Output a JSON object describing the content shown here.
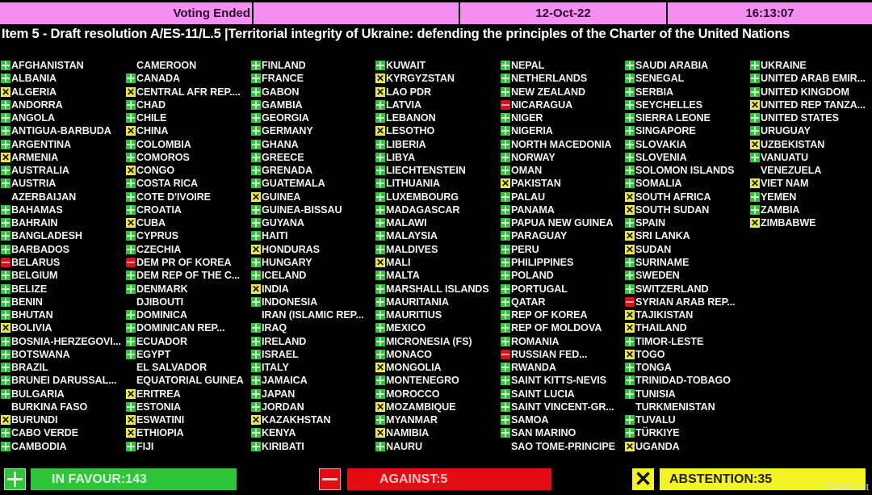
{
  "header": {
    "status": "Voting Ended",
    "empty": "",
    "date": "12-Oct-22",
    "time": "16:13:07"
  },
  "title": "Item 5 - Draft resolution A/ES-11/L.5 |Territorial integrity of Ukraine: defending the principles of the Charter of the United Nations",
  "colors": {
    "header_bg": "#f48ef0",
    "in_favour": "#2fc43a",
    "against": "#e50b12",
    "abstention": "#f4f323"
  },
  "vote_legend": {
    "Y": "plus-icon (in favour)",
    "N": "minus-icon (against)",
    "A": "x-icon (abstention)",
    "": "no vote"
  },
  "columns": [
    [
      [
        "AFGHANISTAN",
        "Y"
      ],
      [
        "ALBANIA",
        "Y"
      ],
      [
        "ALGERIA",
        "A"
      ],
      [
        "ANDORRA",
        "Y"
      ],
      [
        "ANGOLA",
        "Y"
      ],
      [
        "ANTIGUA-BARBUDA",
        "Y"
      ],
      [
        "ARGENTINA",
        "Y"
      ],
      [
        "ARMENIA",
        "A"
      ],
      [
        "AUSTRALIA",
        "Y"
      ],
      [
        "AUSTRIA",
        "Y"
      ],
      [
        "AZERBAIJAN",
        ""
      ],
      [
        "BAHAMAS",
        "Y"
      ],
      [
        "BAHRAIN",
        "Y"
      ],
      [
        "BANGLADESH",
        "Y"
      ],
      [
        "BARBADOS",
        "Y"
      ],
      [
        "BELARUS",
        "N"
      ],
      [
        "BELGIUM",
        "Y"
      ],
      [
        "BELIZE",
        "Y"
      ],
      [
        "BENIN",
        "Y"
      ],
      [
        "BHUTAN",
        "Y"
      ],
      [
        "BOLIVIA",
        "A"
      ],
      [
        "BOSNIA-HERZEGOVI...",
        "Y"
      ],
      [
        "BOTSWANA",
        "Y"
      ],
      [
        "BRAZIL",
        "Y"
      ],
      [
        "BRUNEI DARUSSAL...",
        "Y"
      ],
      [
        "BULGARIA",
        "Y"
      ],
      [
        "BURKINA FASO",
        ""
      ],
      [
        "BURUNDI",
        "A"
      ],
      [
        "CABO VERDE",
        "Y"
      ],
      [
        "CAMBODIA",
        "Y"
      ]
    ],
    [
      [
        "CAMEROON",
        ""
      ],
      [
        "CANADA",
        "Y"
      ],
      [
        "CENTRAL AFR REP....",
        "A"
      ],
      [
        "CHAD",
        "Y"
      ],
      [
        "CHILE",
        "Y"
      ],
      [
        "CHINA",
        "A"
      ],
      [
        "COLOMBIA",
        "Y"
      ],
      [
        "COMOROS",
        "Y"
      ],
      [
        "CONGO",
        "A"
      ],
      [
        "COSTA RICA",
        "Y"
      ],
      [
        "COTE D'IVOIRE",
        "Y"
      ],
      [
        "CROATIA",
        "Y"
      ],
      [
        "CUBA",
        "A"
      ],
      [
        "CYPRUS",
        "Y"
      ],
      [
        "CZECHIA",
        "Y"
      ],
      [
        "DEM PR OF KOREA",
        "N"
      ],
      [
        "DEM REP OF THE C...",
        "Y"
      ],
      [
        "DENMARK",
        "Y"
      ],
      [
        "DJIBOUTI",
        ""
      ],
      [
        "DOMINICA",
        "Y"
      ],
      [
        "DOMINICAN REP...",
        "Y"
      ],
      [
        "ECUADOR",
        "Y"
      ],
      [
        "EGYPT",
        "Y"
      ],
      [
        "EL SALVADOR",
        ""
      ],
      [
        "EQUATORIAL GUINEA",
        ""
      ],
      [
        "ERITREA",
        "A"
      ],
      [
        "ESTONIA",
        "Y"
      ],
      [
        "ESWATINI",
        "A"
      ],
      [
        "ETHIOPIA",
        "A"
      ],
      [
        "FIJI",
        "Y"
      ]
    ],
    [
      [
        "FINLAND",
        "Y"
      ],
      [
        "FRANCE",
        "Y"
      ],
      [
        "GABON",
        "Y"
      ],
      [
        "GAMBIA",
        "Y"
      ],
      [
        "GEORGIA",
        "Y"
      ],
      [
        "GERMANY",
        "Y"
      ],
      [
        "GHANA",
        "Y"
      ],
      [
        "GREECE",
        "Y"
      ],
      [
        "GRENADA",
        "Y"
      ],
      [
        "GUATEMALA",
        "Y"
      ],
      [
        "GUINEA",
        "A"
      ],
      [
        "GUINEA-BISSAU",
        "Y"
      ],
      [
        "GUYANA",
        "Y"
      ],
      [
        "HAITI",
        "Y"
      ],
      [
        "HONDURAS",
        "A"
      ],
      [
        "HUNGARY",
        "Y"
      ],
      [
        "ICELAND",
        "Y"
      ],
      [
        "INDIA",
        "A"
      ],
      [
        "INDONESIA",
        "Y"
      ],
      [
        "IRAN (ISLAMIC REP...",
        ""
      ],
      [
        "IRAQ",
        "Y"
      ],
      [
        "IRELAND",
        "Y"
      ],
      [
        "ISRAEL",
        "Y"
      ],
      [
        "ITALY",
        "Y"
      ],
      [
        "JAMAICA",
        "Y"
      ],
      [
        "JAPAN",
        "Y"
      ],
      [
        "JORDAN",
        "Y"
      ],
      [
        "KAZAKHSTAN",
        "A"
      ],
      [
        "KENYA",
        "Y"
      ],
      [
        "KIRIBATI",
        "Y"
      ]
    ],
    [
      [
        "KUWAIT",
        "Y"
      ],
      [
        "KYRGYZSTAN",
        "A"
      ],
      [
        "LAO PDR",
        "A"
      ],
      [
        "LATVIA",
        "Y"
      ],
      [
        "LEBANON",
        "Y"
      ],
      [
        "LESOTHO",
        "A"
      ],
      [
        "LIBERIA",
        "Y"
      ],
      [
        "LIBYA",
        "Y"
      ],
      [
        "LIECHTENSTEIN",
        "Y"
      ],
      [
        "LITHUANIA",
        "Y"
      ],
      [
        "LUXEMBOURG",
        "Y"
      ],
      [
        "MADAGASCAR",
        "Y"
      ],
      [
        "MALAWI",
        "Y"
      ],
      [
        "MALAYSIA",
        "Y"
      ],
      [
        "MALDIVES",
        "Y"
      ],
      [
        "MALI",
        "A"
      ],
      [
        "MALTA",
        "Y"
      ],
      [
        "MARSHALL ISLANDS",
        "Y"
      ],
      [
        "MAURITANIA",
        "Y"
      ],
      [
        "MAURITIUS",
        "Y"
      ],
      [
        "MEXICO",
        "Y"
      ],
      [
        "MICRONESIA (FS)",
        "Y"
      ],
      [
        "MONACO",
        "Y"
      ],
      [
        "MONGOLIA",
        "A"
      ],
      [
        "MONTENEGRO",
        "Y"
      ],
      [
        "MOROCCO",
        "Y"
      ],
      [
        "MOZAMBIQUE",
        "A"
      ],
      [
        "MYANMAR",
        "Y"
      ],
      [
        "NAMIBIA",
        "A"
      ],
      [
        "NAURU",
        "Y"
      ]
    ],
    [
      [
        "NEPAL",
        "Y"
      ],
      [
        "NETHERLANDS",
        "Y"
      ],
      [
        "NEW ZEALAND",
        "Y"
      ],
      [
        "NICARAGUA",
        "N"
      ],
      [
        "NIGER",
        "Y"
      ],
      [
        "NIGERIA",
        "Y"
      ],
      [
        "NORTH MACEDONIA",
        "Y"
      ],
      [
        "NORWAY",
        "Y"
      ],
      [
        "OMAN",
        "Y"
      ],
      [
        "PAKISTAN",
        "A"
      ],
      [
        "PALAU",
        "Y"
      ],
      [
        "PANAMA",
        "Y"
      ],
      [
        "PAPUA NEW GUINEA",
        "Y"
      ],
      [
        "PARAGUAY",
        "Y"
      ],
      [
        "PERU",
        "Y"
      ],
      [
        "PHILIPPINES",
        "Y"
      ],
      [
        "POLAND",
        "Y"
      ],
      [
        "PORTUGAL",
        "Y"
      ],
      [
        "QATAR",
        "Y"
      ],
      [
        "REP OF KOREA",
        "Y"
      ],
      [
        "REP OF MOLDOVA",
        "Y"
      ],
      [
        "ROMANIA",
        "Y"
      ],
      [
        "RUSSIAN FED...",
        "N"
      ],
      [
        "RWANDA",
        "Y"
      ],
      [
        "SAINT KITTS-NEVIS",
        "Y"
      ],
      [
        "SAINT LUCIA",
        "Y"
      ],
      [
        "SAINT VINCENT-GR...",
        "Y"
      ],
      [
        "SAMOA",
        "Y"
      ],
      [
        "SAN MARINO",
        "Y"
      ],
      [
        "SAO TOME-PRINCIPE",
        ""
      ]
    ],
    [
      [
        "SAUDI ARABIA",
        "Y"
      ],
      [
        "SENEGAL",
        "Y"
      ],
      [
        "SERBIA",
        "Y"
      ],
      [
        "SEYCHELLES",
        "Y"
      ],
      [
        "SIERRA LEONE",
        "Y"
      ],
      [
        "SINGAPORE",
        "Y"
      ],
      [
        "SLOVAKIA",
        "Y"
      ],
      [
        "SLOVENIA",
        "Y"
      ],
      [
        "SOLOMON ISLANDS",
        "Y"
      ],
      [
        "SOMALIA",
        "Y"
      ],
      [
        "SOUTH AFRICA",
        "A"
      ],
      [
        "SOUTH SUDAN",
        "A"
      ],
      [
        "SPAIN",
        "Y"
      ],
      [
        "SRI LANKA",
        "A"
      ],
      [
        "SUDAN",
        "A"
      ],
      [
        "SURINAME",
        "Y"
      ],
      [
        "SWEDEN",
        "Y"
      ],
      [
        "SWITZERLAND",
        "Y"
      ],
      [
        "SYRIAN ARAB REP...",
        "N"
      ],
      [
        "TAJIKISTAN",
        "A"
      ],
      [
        "THAILAND",
        "A"
      ],
      [
        "TIMOR-LESTE",
        "Y"
      ],
      [
        "TOGO",
        "A"
      ],
      [
        "TONGA",
        "Y"
      ],
      [
        "TRINIDAD-TOBAGO",
        "Y"
      ],
      [
        "TUNISIA",
        "Y"
      ],
      [
        "TURKMENISTAN",
        ""
      ],
      [
        "TUVALU",
        "Y"
      ],
      [
        "TÜRKIYE",
        "Y"
      ],
      [
        "UGANDA",
        "A"
      ]
    ],
    [
      [
        "UKRAINE",
        "Y"
      ],
      [
        "UNITED ARAB EMIR...",
        "Y"
      ],
      [
        "UNITED KINGDOM",
        "Y"
      ],
      [
        "UNITED REP TANZA...",
        "A"
      ],
      [
        "UNITED STATES",
        "Y"
      ],
      [
        "URUGUAY",
        "Y"
      ],
      [
        "UZBEKISTAN",
        "A"
      ],
      [
        "VANUATU",
        "Y"
      ],
      [
        "VENEZUELA",
        ""
      ],
      [
        "VIET NAM",
        "A"
      ],
      [
        "YEMEN",
        "Y"
      ],
      [
        "ZAMBIA",
        "Y"
      ],
      [
        "ZIMBABWE",
        "A"
      ]
    ]
  ],
  "totals": {
    "in_favour": "IN FAVOUR:143",
    "against": "AGAINST:5",
    "abstention": "ABSTENTION:35"
  },
  "watermark": "Fishki.net"
}
